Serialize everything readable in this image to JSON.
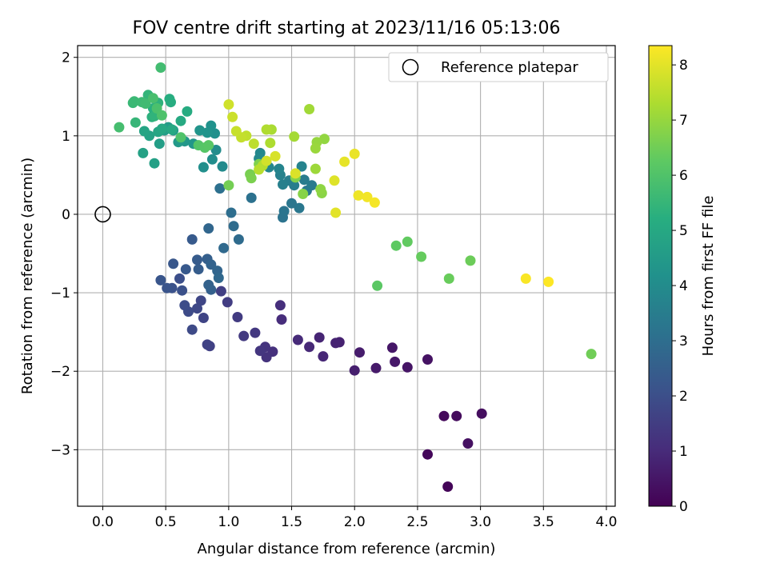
{
  "chart_data": {
    "type": "scatter",
    "title": "FOV centre drift starting at 2023/11/16 05:13:06",
    "xlabel": "Angular distance from reference (arcmin)",
    "ylabel": "Rotation from reference (arcmin)",
    "colorbar_label": "Hours from first FF file",
    "xlim": [
      -0.2,
      4.07
    ],
    "ylim": [
      -3.72,
      2.15
    ],
    "clim": [
      0,
      8.35
    ],
    "grid": true,
    "legend_position": "top-right",
    "colormap": "viridis",
    "x_ticks": [
      0.0,
      0.5,
      1.0,
      1.5,
      2.0,
      2.5,
      3.0,
      3.5,
      4.0
    ],
    "x_tick_labels": [
      "0.0",
      "0.5",
      "1.0",
      "1.5",
      "2.0",
      "2.5",
      "3.0",
      "3.5",
      "4.0"
    ],
    "y_ticks": [
      -3,
      -2,
      -1,
      0,
      1,
      2
    ],
    "y_tick_labels": [
      "−3",
      "−2",
      "−1",
      "0",
      "1",
      "2"
    ],
    "c_ticks": [
      0,
      1,
      2,
      3,
      4,
      5,
      6,
      7,
      8
    ],
    "c_tick_labels": [
      "0",
      "1",
      "2",
      "3",
      "4",
      "5",
      "6",
      "7",
      "8"
    ],
    "reference": {
      "label": "Reference platepar",
      "x": 0.0,
      "y": 0.0
    },
    "points": [
      [
        2.74,
        -3.47,
        0.1
      ],
      [
        2.58,
        -3.06,
        0.15
      ],
      [
        2.71,
        -2.57,
        0.2
      ],
      [
        2.81,
        -2.57,
        0.25
      ],
      [
        3.01,
        -2.54,
        0.3
      ],
      [
        2.9,
        -2.92,
        0.35
      ],
      [
        2.58,
        -1.85,
        0.4
      ],
      [
        2.42,
        -1.95,
        0.45
      ],
      [
        2.3,
        -1.7,
        0.5
      ],
      [
        2.32,
        -1.88,
        0.55
      ],
      [
        2.17,
        -1.96,
        0.6
      ],
      [
        2.04,
        -1.76,
        0.65
      ],
      [
        2.0,
        -1.99,
        0.7
      ],
      [
        1.88,
        -1.63,
        0.75
      ],
      [
        1.85,
        -1.64,
        0.8
      ],
      [
        1.72,
        -1.57,
        0.85
      ],
      [
        1.75,
        -1.81,
        0.9
      ],
      [
        1.64,
        -1.69,
        0.95
      ],
      [
        1.55,
        -1.6,
        1.0
      ],
      [
        1.42,
        -1.34,
        1.05
      ],
      [
        1.41,
        -1.16,
        1.1
      ],
      [
        1.35,
        -1.75,
        1.15
      ],
      [
        1.3,
        -1.82,
        1.2
      ],
      [
        1.29,
        -1.69,
        1.25
      ],
      [
        1.25,
        -1.74,
        1.3
      ],
      [
        1.21,
        -1.51,
        1.35
      ],
      [
        1.12,
        -1.55,
        1.4
      ],
      [
        1.07,
        -1.31,
        1.45
      ],
      [
        0.99,
        -1.12,
        1.5
      ],
      [
        0.94,
        -0.98,
        1.55
      ],
      [
        0.85,
        -1.68,
        1.6
      ],
      [
        0.83,
        -1.66,
        1.65
      ],
      [
        0.8,
        -1.32,
        1.7
      ],
      [
        0.78,
        -1.1,
        1.75
      ],
      [
        0.75,
        -1.2,
        1.8
      ],
      [
        0.71,
        -1.47,
        1.85
      ],
      [
        0.68,
        -1.24,
        1.9
      ],
      [
        0.65,
        -1.16,
        1.95
      ],
      [
        0.61,
        -0.82,
        2.0
      ],
      [
        0.63,
        -0.97,
        2.05
      ],
      [
        0.55,
        -0.94,
        2.1
      ],
      [
        0.51,
        -0.94,
        2.15
      ],
      [
        0.46,
        -0.84,
        2.2
      ],
      [
        0.56,
        -0.63,
        2.25
      ],
      [
        0.66,
        -0.7,
        2.3
      ],
      [
        0.71,
        -0.32,
        2.35
      ],
      [
        0.75,
        -0.58,
        2.4
      ],
      [
        0.76,
        -0.7,
        2.45
      ],
      [
        0.83,
        -0.57,
        2.5
      ],
      [
        0.86,
        -0.96,
        2.55
      ],
      [
        0.84,
        -0.9,
        2.6
      ],
      [
        0.86,
        -0.64,
        2.65
      ],
      [
        0.91,
        -0.72,
        2.7
      ],
      [
        0.84,
        -0.18,
        2.75
      ],
      [
        0.92,
        -0.81,
        2.8
      ],
      [
        0.96,
        -0.43,
        2.85
      ],
      [
        1.08,
        -0.32,
        2.9
      ],
      [
        1.04,
        -0.15,
        2.95
      ],
      [
        1.02,
        0.02,
        3.0
      ],
      [
        0.93,
        0.33,
        3.05
      ],
      [
        1.18,
        0.21,
        3.1
      ],
      [
        1.43,
        -0.04,
        3.15
      ],
      [
        1.44,
        0.04,
        3.2
      ],
      [
        1.5,
        0.14,
        3.25
      ],
      [
        1.56,
        0.08,
        3.3
      ],
      [
        1.62,
        0.3,
        3.35
      ],
      [
        1.66,
        0.37,
        3.4
      ],
      [
        1.6,
        0.44,
        3.45
      ],
      [
        1.52,
        0.37,
        3.5
      ],
      [
        1.48,
        0.43,
        3.55
      ],
      [
        1.43,
        0.38,
        3.6
      ],
      [
        1.41,
        0.5,
        3.65
      ],
      [
        1.58,
        0.61,
        3.7
      ],
      [
        1.4,
        0.58,
        3.75
      ],
      [
        1.32,
        0.6,
        3.8
      ],
      [
        1.25,
        0.78,
        3.85
      ],
      [
        1.24,
        0.71,
        3.9
      ],
      [
        0.95,
        0.61,
        3.95
      ],
      [
        0.9,
        0.82,
        4.0
      ],
      [
        0.87,
        0.7,
        4.05
      ],
      [
        0.8,
        0.6,
        4.1
      ],
      [
        0.89,
        1.03,
        4.15
      ],
      [
        0.86,
        1.13,
        4.2
      ],
      [
        0.83,
        1.04,
        4.25
      ],
      [
        0.77,
        1.07,
        4.3
      ],
      [
        0.72,
        0.9,
        4.35
      ],
      [
        0.65,
        0.93,
        4.4
      ],
      [
        0.6,
        0.92,
        4.45
      ],
      [
        0.56,
        1.07,
        4.5
      ],
      [
        0.52,
        1.11,
        4.55
      ],
      [
        0.49,
        1.07,
        4.6
      ],
      [
        0.45,
        0.9,
        4.65
      ],
      [
        0.41,
        0.65,
        4.7
      ],
      [
        0.32,
        0.78,
        4.75
      ],
      [
        0.37,
        1.0,
        4.8
      ],
      [
        0.33,
        1.06,
        4.85
      ],
      [
        0.44,
        1.05,
        4.9
      ],
      [
        0.47,
        1.09,
        4.95
      ],
      [
        0.55,
        1.08,
        5.0
      ],
      [
        0.62,
        1.19,
        5.05
      ],
      [
        0.67,
        1.31,
        5.1
      ],
      [
        0.54,
        1.43,
        5.15
      ],
      [
        0.53,
        1.47,
        5.2
      ],
      [
        0.4,
        1.35,
        5.25
      ],
      [
        0.39,
        1.24,
        5.3
      ],
      [
        0.44,
        1.42,
        5.35
      ],
      [
        0.41,
        1.25,
        5.4
      ],
      [
        0.36,
        1.52,
        5.45
      ],
      [
        0.26,
        1.17,
        5.5
      ],
      [
        0.24,
        1.42,
        5.55
      ],
      [
        0.25,
        1.44,
        5.6
      ],
      [
        0.31,
        1.43,
        5.65
      ],
      [
        0.34,
        1.41,
        5.7
      ],
      [
        0.46,
        1.87,
        5.75
      ],
      [
        0.13,
        1.11,
        5.8
      ],
      [
        0.4,
        1.48,
        5.85
      ],
      [
        0.43,
        1.35,
        5.9
      ],
      [
        0.47,
        1.26,
        5.95
      ],
      [
        0.62,
        0.98,
        6.0
      ],
      [
        0.76,
        0.88,
        6.05
      ],
      [
        0.81,
        0.85,
        6.1
      ],
      [
        0.84,
        0.88,
        6.15
      ],
      [
        2.18,
        -0.91,
        6.2
      ],
      [
        2.33,
        -0.4,
        6.25
      ],
      [
        2.42,
        -0.35,
        6.3
      ],
      [
        2.53,
        -0.54,
        6.35
      ],
      [
        2.75,
        -0.82,
        6.4
      ],
      [
        2.92,
        -0.59,
        6.45
      ],
      [
        3.88,
        -1.78,
        6.5
      ],
      [
        1.0,
        0.37,
        6.55
      ],
      [
        1.17,
        0.51,
        6.6
      ],
      [
        1.18,
        0.46,
        6.65
      ],
      [
        1.24,
        0.64,
        6.7
      ],
      [
        1.53,
        0.47,
        6.75
      ],
      [
        1.59,
        0.26,
        6.8
      ],
      [
        1.74,
        0.27,
        6.85
      ],
      [
        1.73,
        0.32,
        6.9
      ],
      [
        1.76,
        0.96,
        6.95
      ],
      [
        1.7,
        0.92,
        7.0
      ],
      [
        1.69,
        0.84,
        7.05
      ],
      [
        1.69,
        0.58,
        7.1
      ],
      [
        1.64,
        1.34,
        7.15
      ],
      [
        1.52,
        0.99,
        7.2
      ],
      [
        1.34,
        1.08,
        7.25
      ],
      [
        1.33,
        0.91,
        7.3
      ],
      [
        1.3,
        1.08,
        7.35
      ],
      [
        1.27,
        0.62,
        7.4
      ],
      [
        1.24,
        0.57,
        7.45
      ],
      [
        1.2,
        0.9,
        7.5
      ],
      [
        1.14,
        1.0,
        7.55
      ],
      [
        1.1,
        0.98,
        7.6
      ],
      [
        1.06,
        1.06,
        7.65
      ],
      [
        1.03,
        1.24,
        7.7
      ],
      [
        1.0,
        1.4,
        7.75
      ],
      [
        1.3,
        0.68,
        7.8
      ],
      [
        1.37,
        0.74,
        7.85
      ],
      [
        1.53,
        0.52,
        7.9
      ],
      [
        1.84,
        0.43,
        7.95
      ],
      [
        1.85,
        0.02,
        8.0
      ],
      [
        1.92,
        0.67,
        8.05
      ],
      [
        2.0,
        0.77,
        8.1
      ],
      [
        2.03,
        0.24,
        8.15
      ],
      [
        2.1,
        0.22,
        8.2
      ],
      [
        2.16,
        0.15,
        8.25
      ],
      [
        3.36,
        -0.82,
        8.3
      ],
      [
        3.54,
        -0.86,
        8.35
      ]
    ]
  }
}
